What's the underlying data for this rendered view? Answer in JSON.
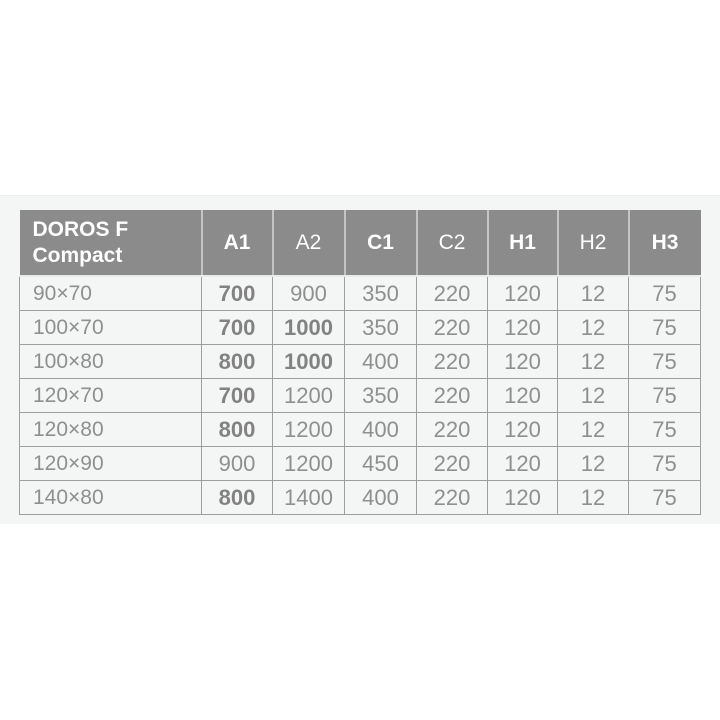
{
  "colors": {
    "page_background": "#ffffff",
    "section_background": "#f4f5f5",
    "header_background": "#8b8b8b",
    "header_text": "#ffffff",
    "cell_text": "#8f8f8f",
    "grid_border": "#9e9e9e"
  },
  "table": {
    "header": {
      "title_line1": "DOROS F",
      "title_line2": "Compact",
      "columns": [
        {
          "label": "A1",
          "bold": true
        },
        {
          "label": "A2",
          "bold": false
        },
        {
          "label": "C1",
          "bold": true
        },
        {
          "label": "C2",
          "bold": false
        },
        {
          "label": "H1",
          "bold": true
        },
        {
          "label": "H2",
          "bold": false
        },
        {
          "label": "H3",
          "bold": true
        }
      ]
    },
    "rows": [
      {
        "label": "90×70",
        "values": [
          "700",
          "900",
          "350",
          "220",
          "120",
          "12",
          "75"
        ],
        "bold": [
          true,
          false,
          false,
          false,
          false,
          false,
          false
        ]
      },
      {
        "label": "100×70",
        "values": [
          "700",
          "1000",
          "350",
          "220",
          "120",
          "12",
          "75"
        ],
        "bold": [
          true,
          true,
          false,
          false,
          false,
          false,
          false
        ]
      },
      {
        "label": "100×80",
        "values": [
          "800",
          "1000",
          "400",
          "220",
          "120",
          "12",
          "75"
        ],
        "bold": [
          true,
          true,
          false,
          false,
          false,
          false,
          false
        ]
      },
      {
        "label": "120×70",
        "values": [
          "700",
          "1200",
          "350",
          "220",
          "120",
          "12",
          "75"
        ],
        "bold": [
          true,
          false,
          false,
          false,
          false,
          false,
          false
        ]
      },
      {
        "label": "120×80",
        "values": [
          "800",
          "1200",
          "400",
          "220",
          "120",
          "12",
          "75"
        ],
        "bold": [
          true,
          false,
          false,
          false,
          false,
          false,
          false
        ]
      },
      {
        "label": "120×90",
        "values": [
          "900",
          "1200",
          "450",
          "220",
          "120",
          "12",
          "75"
        ],
        "bold": [
          false,
          false,
          false,
          false,
          false,
          false,
          false
        ]
      },
      {
        "label": "140×80",
        "values": [
          "800",
          "1400",
          "400",
          "220",
          "120",
          "12",
          "75"
        ],
        "bold": [
          true,
          false,
          false,
          false,
          false,
          false,
          false
        ]
      }
    ]
  }
}
